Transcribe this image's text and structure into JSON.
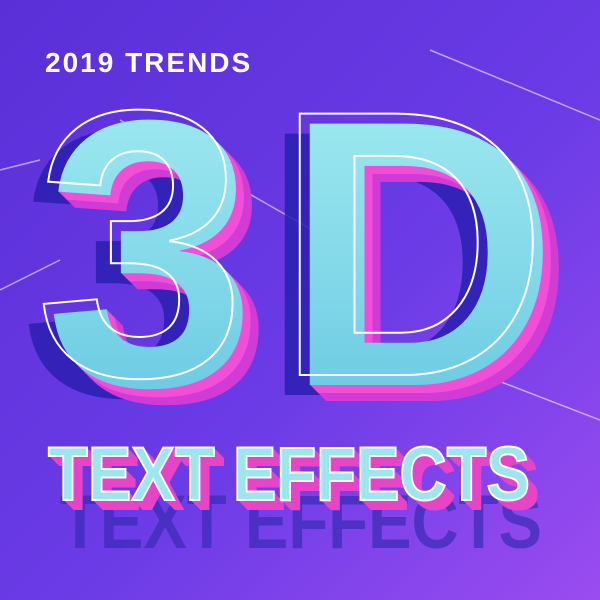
{
  "header": {
    "subtitle": "2019 TRENDS"
  },
  "headline": "3D",
  "tagline": "TEXT EFFECTS"
}
